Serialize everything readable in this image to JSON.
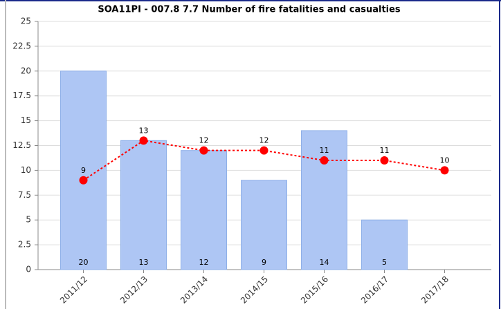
{
  "chart_data": {
    "type": "bar",
    "title": "SOA11PI - 007.8 7.7 Number of fire fatalities and casualties",
    "categories": [
      "2011/12",
      "2012/13",
      "2013/14",
      "2014/15",
      "2015/16",
      "2016/17",
      "2017/18"
    ],
    "series": [
      {
        "type": "bar",
        "color": "#aec6f4",
        "values": [
          20,
          13,
          12,
          9,
          14,
          5,
          null
        ]
      },
      {
        "type": "line",
        "color": "#ff0000",
        "values": [
          9,
          13,
          12,
          12,
          11,
          11,
          10
        ]
      }
    ],
    "ylim": [
      0,
      25
    ],
    "yticks": [
      0,
      2.5,
      5,
      7.5,
      10,
      12.5,
      15,
      17.5,
      20,
      22.5,
      25
    ],
    "grid": true
  }
}
